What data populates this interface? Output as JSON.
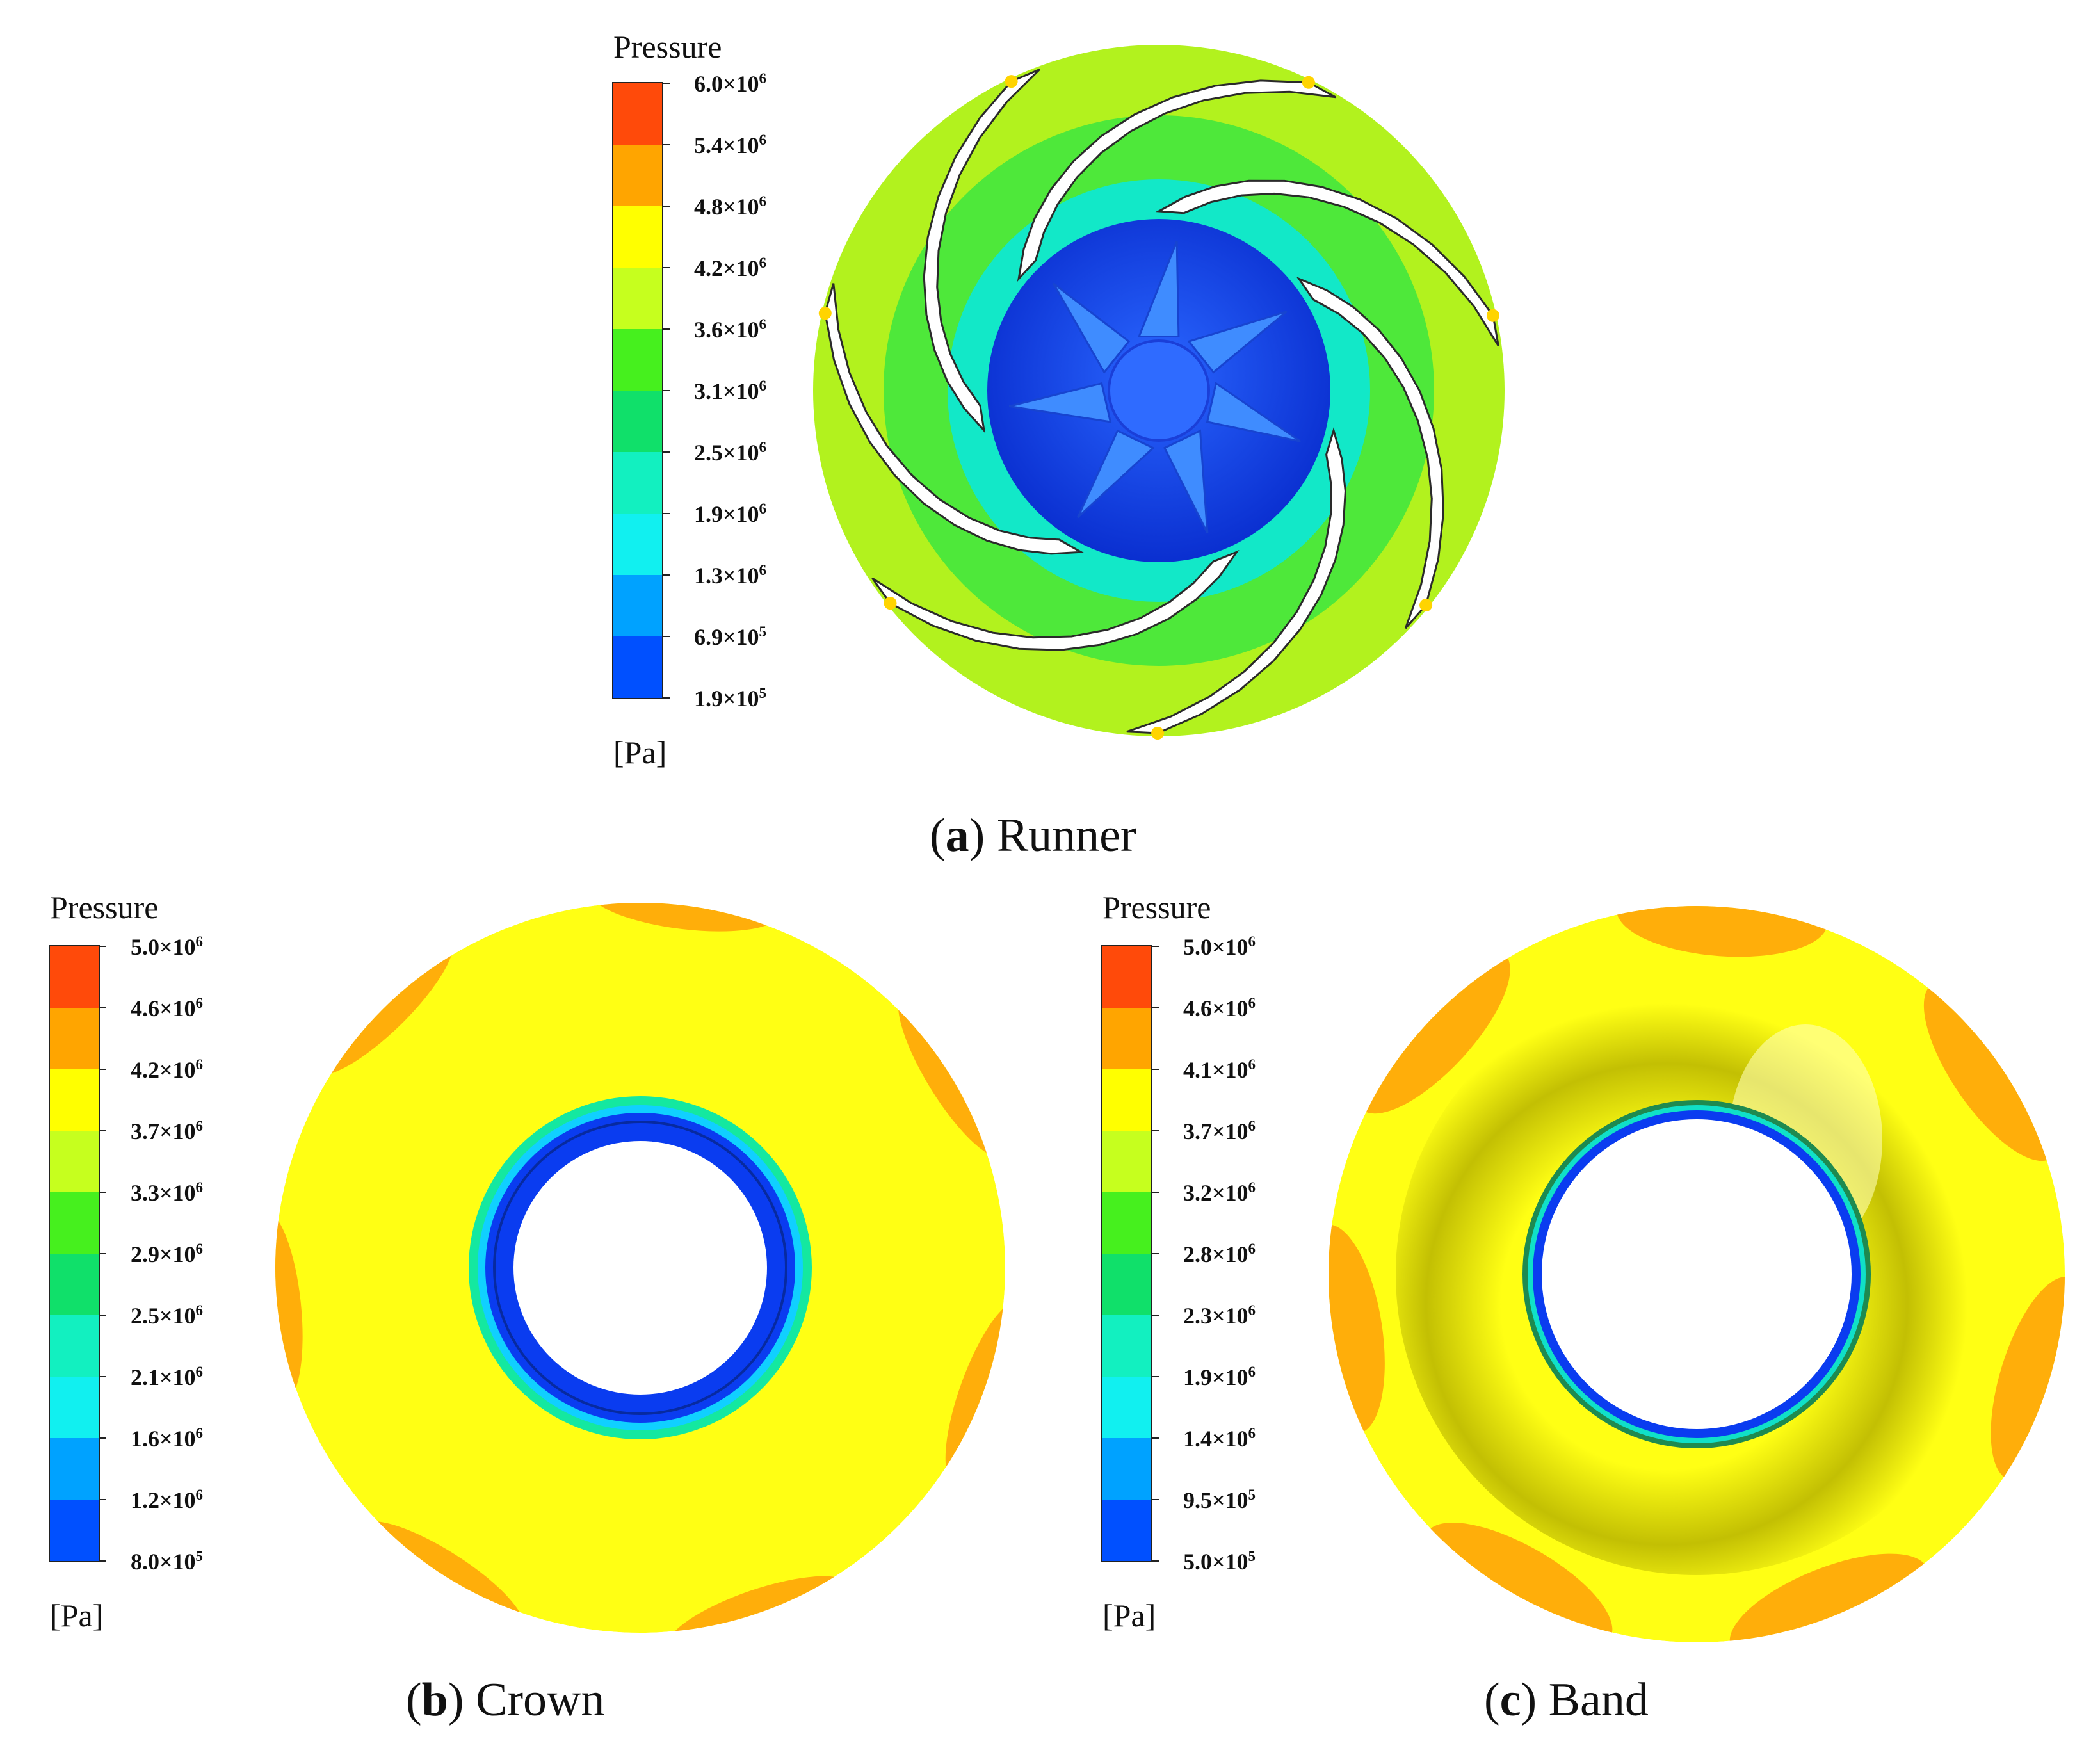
{
  "panels": [
    {
      "id": "a",
      "caption_letter": "a",
      "caption_text": "Runner",
      "legend": {
        "title": "Pressure",
        "unit": "[Pa]",
        "ticks": [
          {
            "mant": "6.0×10",
            "exp": "6"
          },
          {
            "mant": "5.4×10",
            "exp": "6"
          },
          {
            "mant": "4.8×10",
            "exp": "6"
          },
          {
            "mant": "4.2×10",
            "exp": "6"
          },
          {
            "mant": "3.6×10",
            "exp": "6"
          },
          {
            "mant": "3.1×10",
            "exp": "6"
          },
          {
            "mant": "2.5×10",
            "exp": "6"
          },
          {
            "mant": "1.9×10",
            "exp": "6"
          },
          {
            "mant": "1.3×10",
            "exp": "6"
          },
          {
            "mant": "6.9×10",
            "exp": "5"
          },
          {
            "mant": "1.9×10",
            "exp": "5"
          }
        ]
      }
    },
    {
      "id": "b",
      "caption_letter": "b",
      "caption_text": "Crown",
      "legend": {
        "title": "Pressure",
        "unit": "[Pa]",
        "ticks": [
          {
            "mant": "5.0×10",
            "exp": "6"
          },
          {
            "mant": "4.6×10",
            "exp": "6"
          },
          {
            "mant": "4.2×10",
            "exp": "6"
          },
          {
            "mant": "3.7×10",
            "exp": "6"
          },
          {
            "mant": "3.3×10",
            "exp": "6"
          },
          {
            "mant": "2.9×10",
            "exp": "6"
          },
          {
            "mant": "2.5×10",
            "exp": "6"
          },
          {
            "mant": "2.1×10",
            "exp": "6"
          },
          {
            "mant": "1.6×10",
            "exp": "6"
          },
          {
            "mant": "1.2×10",
            "exp": "6"
          },
          {
            "mant": "8.0×10",
            "exp": "5"
          }
        ]
      }
    },
    {
      "id": "c",
      "caption_letter": "c",
      "caption_text": "Band",
      "legend": {
        "title": "Pressure",
        "unit": "[Pa]",
        "ticks": [
          {
            "mant": "5.0×10",
            "exp": "6"
          },
          {
            "mant": "4.6×10",
            "exp": "6"
          },
          {
            "mant": "4.1×10",
            "exp": "6"
          },
          {
            "mant": "3.7×10",
            "exp": "6"
          },
          {
            "mant": "3.2×10",
            "exp": "6"
          },
          {
            "mant": "2.8×10",
            "exp": "6"
          },
          {
            "mant": "2.3×10",
            "exp": "6"
          },
          {
            "mant": "1.9×10",
            "exp": "6"
          },
          {
            "mant": "1.4×10",
            "exp": "6"
          },
          {
            "mant": "9.5×10",
            "exp": "5"
          },
          {
            "mant": "5.0×10",
            "exp": "5"
          }
        ]
      }
    }
  ],
  "colormap": [
    "#ff4a0a",
    "#ffa500",
    "#ffff00",
    "#c6ff1e",
    "#46f01e",
    "#10e06a",
    "#12f0c0",
    "#11f0f0",
    "#00a2ff",
    "#0050ff"
  ]
}
